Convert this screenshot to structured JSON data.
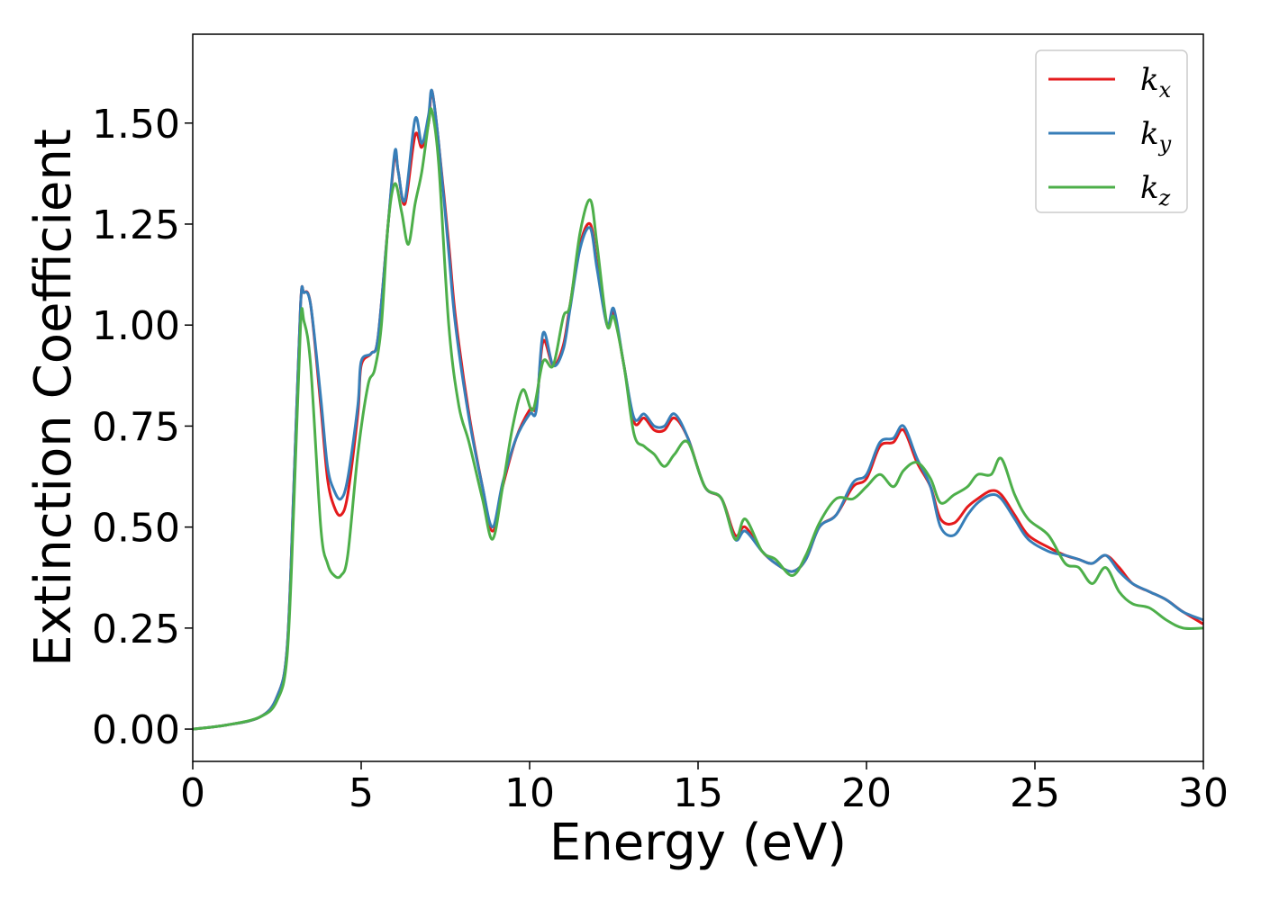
{
  "chart_data": {
    "type": "line",
    "title": "",
    "xlabel": "Energy (eV)",
    "ylabel": "Extinction Coefficient",
    "xlim": [
      0,
      30
    ],
    "ylim": [
      -0.08,
      1.72
    ],
    "x_ticks": [
      0,
      5,
      10,
      15,
      20,
      25,
      30
    ],
    "x_tick_labels": [
      "0",
      "5",
      "10",
      "15",
      "20",
      "25",
      "30"
    ],
    "y_ticks": [
      0,
      0.25,
      0.5,
      0.75,
      1.0,
      1.25,
      1.5
    ],
    "y_tick_labels": [
      "0.00",
      "0.25",
      "0.50",
      "0.75",
      "1.00",
      "1.25",
      "1.50"
    ],
    "grid": false,
    "legend_position": "top-right",
    "series": [
      {
        "name": "kx",
        "legend_base": "k",
        "legend_sub": "x",
        "color": "#e41a1c",
        "points": [
          [
            0,
            0
          ],
          [
            1,
            0.01
          ],
          [
            2,
            0.03
          ],
          [
            2.5,
            0.08
          ],
          [
            2.8,
            0.2
          ],
          [
            3.0,
            0.6
          ],
          [
            3.2,
            1.05
          ],
          [
            3.3,
            1.08
          ],
          [
            3.5,
            1.05
          ],
          [
            3.8,
            0.8
          ],
          [
            4.0,
            0.62
          ],
          [
            4.2,
            0.55
          ],
          [
            4.4,
            0.53
          ],
          [
            4.6,
            0.58
          ],
          [
            4.9,
            0.78
          ],
          [
            5.0,
            0.9
          ],
          [
            5.3,
            0.93
          ],
          [
            5.5,
            0.97
          ],
          [
            5.8,
            1.25
          ],
          [
            6.0,
            1.42
          ],
          [
            6.1,
            1.38
          ],
          [
            6.3,
            1.3
          ],
          [
            6.6,
            1.47
          ],
          [
            6.8,
            1.44
          ],
          [
            7.0,
            1.5
          ],
          [
            7.1,
            1.58
          ],
          [
            7.3,
            1.45
          ],
          [
            7.6,
            1.2
          ],
          [
            7.8,
            1.02
          ],
          [
            8.2,
            0.78
          ],
          [
            8.6,
            0.6
          ],
          [
            8.9,
            0.49
          ],
          [
            9.2,
            0.6
          ],
          [
            9.6,
            0.72
          ],
          [
            10.0,
            0.79
          ],
          [
            10.2,
            0.8
          ],
          [
            10.4,
            0.96
          ],
          [
            10.7,
            0.9
          ],
          [
            11.0,
            0.95
          ],
          [
            11.2,
            1.05
          ],
          [
            11.5,
            1.2
          ],
          [
            11.8,
            1.25
          ],
          [
            12.0,
            1.15
          ],
          [
            12.3,
            1.0
          ],
          [
            12.5,
            1.03
          ],
          [
            12.8,
            0.9
          ],
          [
            13.1,
            0.76
          ],
          [
            13.4,
            0.77
          ],
          [
            13.7,
            0.74
          ],
          [
            14.0,
            0.74
          ],
          [
            14.3,
            0.77
          ],
          [
            14.7,
            0.72
          ],
          [
            15.2,
            0.6
          ],
          [
            15.7,
            0.57
          ],
          [
            16.1,
            0.48
          ],
          [
            16.4,
            0.5
          ],
          [
            16.9,
            0.44
          ],
          [
            17.3,
            0.41
          ],
          [
            17.8,
            0.39
          ],
          [
            18.2,
            0.42
          ],
          [
            18.6,
            0.5
          ],
          [
            19.1,
            0.53
          ],
          [
            19.6,
            0.6
          ],
          [
            20.0,
            0.62
          ],
          [
            20.4,
            0.7
          ],
          [
            20.8,
            0.71
          ],
          [
            21.1,
            0.74
          ],
          [
            21.5,
            0.66
          ],
          [
            21.9,
            0.6
          ],
          [
            22.2,
            0.52
          ],
          [
            22.6,
            0.51
          ],
          [
            23.0,
            0.55
          ],
          [
            23.3,
            0.57
          ],
          [
            23.7,
            0.59
          ],
          [
            24.0,
            0.58
          ],
          [
            24.4,
            0.53
          ],
          [
            24.8,
            0.48
          ],
          [
            25.4,
            0.45
          ],
          [
            25.9,
            0.43
          ],
          [
            26.3,
            0.42
          ],
          [
            26.7,
            0.41
          ],
          [
            27.1,
            0.43
          ],
          [
            27.5,
            0.4
          ],
          [
            27.9,
            0.36
          ],
          [
            28.4,
            0.34
          ],
          [
            28.9,
            0.32
          ],
          [
            29.4,
            0.29
          ],
          [
            30.0,
            0.26
          ]
        ]
      },
      {
        "name": "ky",
        "legend_base": "k",
        "legend_sub": "y",
        "color": "#377eb8",
        "points": [
          [
            0,
            0
          ],
          [
            1,
            0.01
          ],
          [
            2,
            0.03
          ],
          [
            2.5,
            0.08
          ],
          [
            2.8,
            0.2
          ],
          [
            3.0,
            0.6
          ],
          [
            3.2,
            1.05
          ],
          [
            3.3,
            1.08
          ],
          [
            3.5,
            1.05
          ],
          [
            3.8,
            0.82
          ],
          [
            4.0,
            0.65
          ],
          [
            4.2,
            0.59
          ],
          [
            4.4,
            0.57
          ],
          [
            4.6,
            0.62
          ],
          [
            4.9,
            0.8
          ],
          [
            5.0,
            0.91
          ],
          [
            5.3,
            0.93
          ],
          [
            5.5,
            0.97
          ],
          [
            5.8,
            1.25
          ],
          [
            6.0,
            1.43
          ],
          [
            6.1,
            1.38
          ],
          [
            6.3,
            1.31
          ],
          [
            6.6,
            1.51
          ],
          [
            6.8,
            1.45
          ],
          [
            7.0,
            1.52
          ],
          [
            7.1,
            1.58
          ],
          [
            7.3,
            1.45
          ],
          [
            7.6,
            1.18
          ],
          [
            7.8,
            1.0
          ],
          [
            8.2,
            0.77
          ],
          [
            8.6,
            0.6
          ],
          [
            8.9,
            0.5
          ],
          [
            9.2,
            0.61
          ],
          [
            9.6,
            0.72
          ],
          [
            10.0,
            0.78
          ],
          [
            10.2,
            0.79
          ],
          [
            10.4,
            0.98
          ],
          [
            10.7,
            0.9
          ],
          [
            11.0,
            0.94
          ],
          [
            11.2,
            1.04
          ],
          [
            11.5,
            1.19
          ],
          [
            11.8,
            1.24
          ],
          [
            12.0,
            1.14
          ],
          [
            12.3,
            1.0
          ],
          [
            12.5,
            1.04
          ],
          [
            12.8,
            0.9
          ],
          [
            13.1,
            0.77
          ],
          [
            13.4,
            0.78
          ],
          [
            13.7,
            0.75
          ],
          [
            14.0,
            0.75
          ],
          [
            14.3,
            0.78
          ],
          [
            14.7,
            0.72
          ],
          [
            15.2,
            0.6
          ],
          [
            15.7,
            0.57
          ],
          [
            16.1,
            0.47
          ],
          [
            16.4,
            0.49
          ],
          [
            16.9,
            0.44
          ],
          [
            17.3,
            0.41
          ],
          [
            17.8,
            0.39
          ],
          [
            18.2,
            0.42
          ],
          [
            18.6,
            0.5
          ],
          [
            19.1,
            0.53
          ],
          [
            19.6,
            0.61
          ],
          [
            20.0,
            0.63
          ],
          [
            20.4,
            0.71
          ],
          [
            20.8,
            0.72
          ],
          [
            21.1,
            0.75
          ],
          [
            21.5,
            0.67
          ],
          [
            21.9,
            0.6
          ],
          [
            22.2,
            0.5
          ],
          [
            22.6,
            0.48
          ],
          [
            23.0,
            0.53
          ],
          [
            23.3,
            0.56
          ],
          [
            23.7,
            0.58
          ],
          [
            24.0,
            0.57
          ],
          [
            24.4,
            0.52
          ],
          [
            24.8,
            0.47
          ],
          [
            25.4,
            0.44
          ],
          [
            25.9,
            0.43
          ],
          [
            26.3,
            0.42
          ],
          [
            26.7,
            0.41
          ],
          [
            27.1,
            0.43
          ],
          [
            27.5,
            0.39
          ],
          [
            27.9,
            0.36
          ],
          [
            28.4,
            0.34
          ],
          [
            28.9,
            0.32
          ],
          [
            29.4,
            0.29
          ],
          [
            30.0,
            0.27
          ]
        ]
      },
      {
        "name": "kz",
        "legend_base": "k",
        "legend_sub": "z",
        "color": "#4daf4a",
        "points": [
          [
            0,
            0
          ],
          [
            1,
            0.01
          ],
          [
            2,
            0.03
          ],
          [
            2.5,
            0.07
          ],
          [
            2.8,
            0.18
          ],
          [
            3.0,
            0.55
          ],
          [
            3.2,
            1.0
          ],
          [
            3.3,
            1.01
          ],
          [
            3.5,
            0.9
          ],
          [
            3.8,
            0.5
          ],
          [
            4.0,
            0.41
          ],
          [
            4.2,
            0.38
          ],
          [
            4.4,
            0.38
          ],
          [
            4.6,
            0.43
          ],
          [
            4.9,
            0.68
          ],
          [
            5.2,
            0.85
          ],
          [
            5.4,
            0.89
          ],
          [
            5.6,
            1.0
          ],
          [
            5.8,
            1.25
          ],
          [
            6.0,
            1.35
          ],
          [
            6.2,
            1.28
          ],
          [
            6.4,
            1.2
          ],
          [
            6.6,
            1.3
          ],
          [
            6.8,
            1.38
          ],
          [
            7.0,
            1.5
          ],
          [
            7.1,
            1.53
          ],
          [
            7.3,
            1.4
          ],
          [
            7.6,
            1.0
          ],
          [
            7.9,
            0.8
          ],
          [
            8.2,
            0.71
          ],
          [
            8.6,
            0.57
          ],
          [
            8.9,
            0.47
          ],
          [
            9.2,
            0.6
          ],
          [
            9.5,
            0.75
          ],
          [
            9.8,
            0.84
          ],
          [
            10.1,
            0.79
          ],
          [
            10.4,
            0.91
          ],
          [
            10.7,
            0.9
          ],
          [
            11.0,
            1.02
          ],
          [
            11.2,
            1.05
          ],
          [
            11.5,
            1.23
          ],
          [
            11.8,
            1.31
          ],
          [
            12.0,
            1.2
          ],
          [
            12.3,
            1.0
          ],
          [
            12.5,
            1.02
          ],
          [
            12.8,
            0.9
          ],
          [
            13.1,
            0.73
          ],
          [
            13.4,
            0.7
          ],
          [
            13.7,
            0.68
          ],
          [
            14.0,
            0.65
          ],
          [
            14.3,
            0.68
          ],
          [
            14.7,
            0.71
          ],
          [
            15.2,
            0.6
          ],
          [
            15.7,
            0.57
          ],
          [
            16.1,
            0.47
          ],
          [
            16.4,
            0.52
          ],
          [
            16.9,
            0.44
          ],
          [
            17.3,
            0.42
          ],
          [
            17.8,
            0.38
          ],
          [
            18.2,
            0.43
          ],
          [
            18.6,
            0.51
          ],
          [
            19.1,
            0.57
          ],
          [
            19.6,
            0.57
          ],
          [
            20.0,
            0.6
          ],
          [
            20.4,
            0.63
          ],
          [
            20.8,
            0.6
          ],
          [
            21.1,
            0.64
          ],
          [
            21.5,
            0.66
          ],
          [
            21.9,
            0.62
          ],
          [
            22.2,
            0.56
          ],
          [
            22.6,
            0.58
          ],
          [
            23.0,
            0.6
          ],
          [
            23.3,
            0.63
          ],
          [
            23.7,
            0.63
          ],
          [
            24.0,
            0.67
          ],
          [
            24.4,
            0.58
          ],
          [
            24.8,
            0.52
          ],
          [
            25.4,
            0.48
          ],
          [
            25.9,
            0.41
          ],
          [
            26.3,
            0.4
          ],
          [
            26.7,
            0.36
          ],
          [
            27.1,
            0.4
          ],
          [
            27.5,
            0.34
          ],
          [
            27.9,
            0.31
          ],
          [
            28.4,
            0.3
          ],
          [
            28.9,
            0.27
          ],
          [
            29.4,
            0.25
          ],
          [
            30.0,
            0.25
          ]
        ]
      }
    ]
  }
}
